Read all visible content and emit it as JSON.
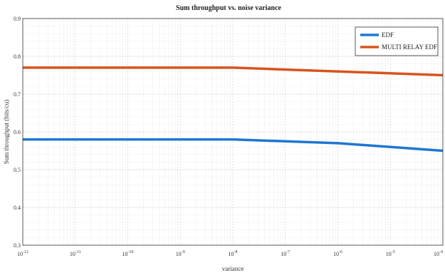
{
  "chart_data": {
    "type": "line",
    "title": "Sum throughput vs. noise variance",
    "xlabel": "variance",
    "ylabel": "Sum throughput (bits/cu)",
    "x_scale": "log",
    "xlim": [
      1e-12,
      0.0001
    ],
    "ylim": [
      0.3,
      0.9
    ],
    "x": [
      1e-12,
      1e-08,
      1e-06,
      0.0001
    ],
    "x_ticks": [
      {
        "value": 1e-12,
        "base": "10",
        "exp": "-12"
      },
      {
        "value": 1e-11,
        "base": "10",
        "exp": "-11"
      },
      {
        "value": 1e-10,
        "base": "10",
        "exp": "-10"
      },
      {
        "value": 1e-09,
        "base": "10",
        "exp": "-9"
      },
      {
        "value": 1e-08,
        "base": "10",
        "exp": "-8"
      },
      {
        "value": 1e-07,
        "base": "10",
        "exp": "-7"
      },
      {
        "value": 1e-06,
        "base": "10",
        "exp": "-6"
      },
      {
        "value": 1e-05,
        "base": "10",
        "exp": "-5"
      },
      {
        "value": 0.0001,
        "base": "10",
        "exp": "-4"
      }
    ],
    "y_ticks": [
      {
        "value": 0.3,
        "label": "0.3"
      },
      {
        "value": 0.4,
        "label": "0.4"
      },
      {
        "value": 0.5,
        "label": "0.5"
      },
      {
        "value": 0.6,
        "label": "0.6"
      },
      {
        "value": 0.7,
        "label": "0.7"
      },
      {
        "value": 0.8,
        "label": "0.8"
      },
      {
        "value": 0.9,
        "label": "0.9"
      }
    ],
    "series": [
      {
        "name": "EDF",
        "color": "#1f77d0",
        "values": [
          0.58,
          0.58,
          0.57,
          0.55
        ]
      },
      {
        "name": "MULTI RELAY EDF",
        "color": "#d9531e",
        "values": [
          0.77,
          0.77,
          0.76,
          0.75
        ]
      }
    ],
    "grid": true,
    "minor_grid": true,
    "legend_position": "top-right"
  }
}
